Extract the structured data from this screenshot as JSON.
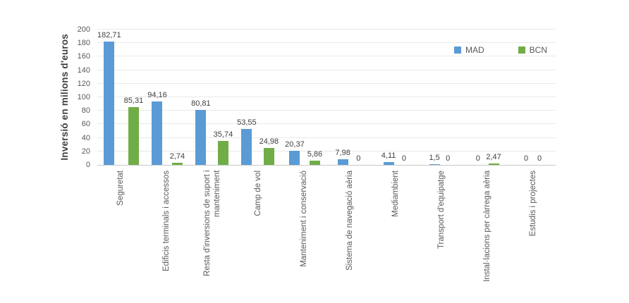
{
  "chart_data": {
    "type": "bar",
    "title": "",
    "ylabel": "Inversió en milions d'euros",
    "xlabel": "",
    "ylim": [
      0,
      200
    ],
    "ytick_step": 20,
    "yticks": [
      "0",
      "20",
      "40",
      "60",
      "80",
      "100",
      "120",
      "140",
      "160",
      "180",
      "200"
    ],
    "grid": true,
    "legend_position": "top-right",
    "categories": [
      "Seguretat",
      "Edificis terminals i accessos",
      "Resta d'inversions de suport i manteniment",
      "Camp de vol",
      "Manteniment i conservació",
      "Sistema de navegació aèria",
      "Mediambient",
      "Transport d'equipatge",
      "Instal·lacions per càrrega aèria",
      "Estudis i projectes"
    ],
    "series": [
      {
        "name": "MAD",
        "color": "#5b9bd5",
        "values": [
          182.71,
          94.16,
          80.81,
          53.55,
          20.37,
          7.98,
          4.11,
          1.5,
          0,
          0
        ],
        "labels": [
          "182,71",
          "94,16",
          "80,81",
          "53,55",
          "20,37",
          "7,98",
          "4,11",
          "1,5",
          "0",
          "0"
        ]
      },
      {
        "name": "BCN",
        "color": "#70ad47",
        "values": [
          85.31,
          2.74,
          35.74,
          24.98,
          5.86,
          0,
          0,
          0,
          2.47,
          0
        ],
        "labels": [
          "85,31",
          "2,74",
          "35,74",
          "24,98",
          "5,86",
          "0",
          "0",
          "0",
          "2,47",
          "0"
        ]
      }
    ]
  }
}
